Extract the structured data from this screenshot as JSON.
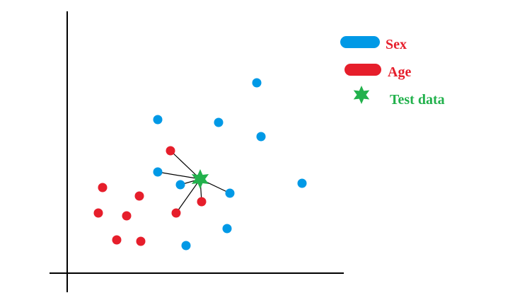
{
  "chart_data": {
    "type": "scatter",
    "title": "",
    "xlabel": "",
    "ylabel": "",
    "colors": {
      "blue": "#0099e6",
      "red": "#e61e2b",
      "green": "#22b14c"
    },
    "legend": [
      {
        "key": "sex",
        "label": "Sex",
        "marker": "pill",
        "color": "#0099e6",
        "text_color": "#e61e2b"
      },
      {
        "key": "age",
        "label": "Age",
        "marker": "pill",
        "color": "#e61e2b",
        "text_color": "#e61e2b"
      },
      {
        "key": "test",
        "label": "Test data",
        "marker": "star",
        "color": "#22b14c",
        "text_color": "#22b14c"
      }
    ],
    "series": [
      {
        "name": "Sex",
        "color": "#0099e6",
        "points": [
          [
            363,
            117
          ],
          [
            223,
            169
          ],
          [
            309,
            173
          ],
          [
            369,
            193
          ],
          [
            223,
            243
          ],
          [
            255,
            261
          ],
          [
            325,
            273
          ],
          [
            427,
            259
          ],
          [
            321,
            323
          ],
          [
            263,
            347
          ]
        ]
      },
      {
        "name": "Age",
        "color": "#e61e2b",
        "points": [
          [
            241,
            213
          ],
          [
            145,
            265
          ],
          [
            197,
            277
          ],
          [
            139,
            301
          ],
          [
            179,
            305
          ],
          [
            249,
            301
          ],
          [
            285,
            285
          ],
          [
            165,
            339
          ],
          [
            199,
            341
          ]
        ]
      }
    ],
    "test_point": {
      "name": "Test data",
      "color": "#22b14c",
      "x": 283,
      "y": 253
    },
    "neighbor_links": [
      [
        241,
        213
      ],
      [
        223,
        243
      ],
      [
        255,
        261
      ],
      [
        325,
        273
      ],
      [
        285,
        285
      ],
      [
        249,
        301
      ]
    ]
  }
}
